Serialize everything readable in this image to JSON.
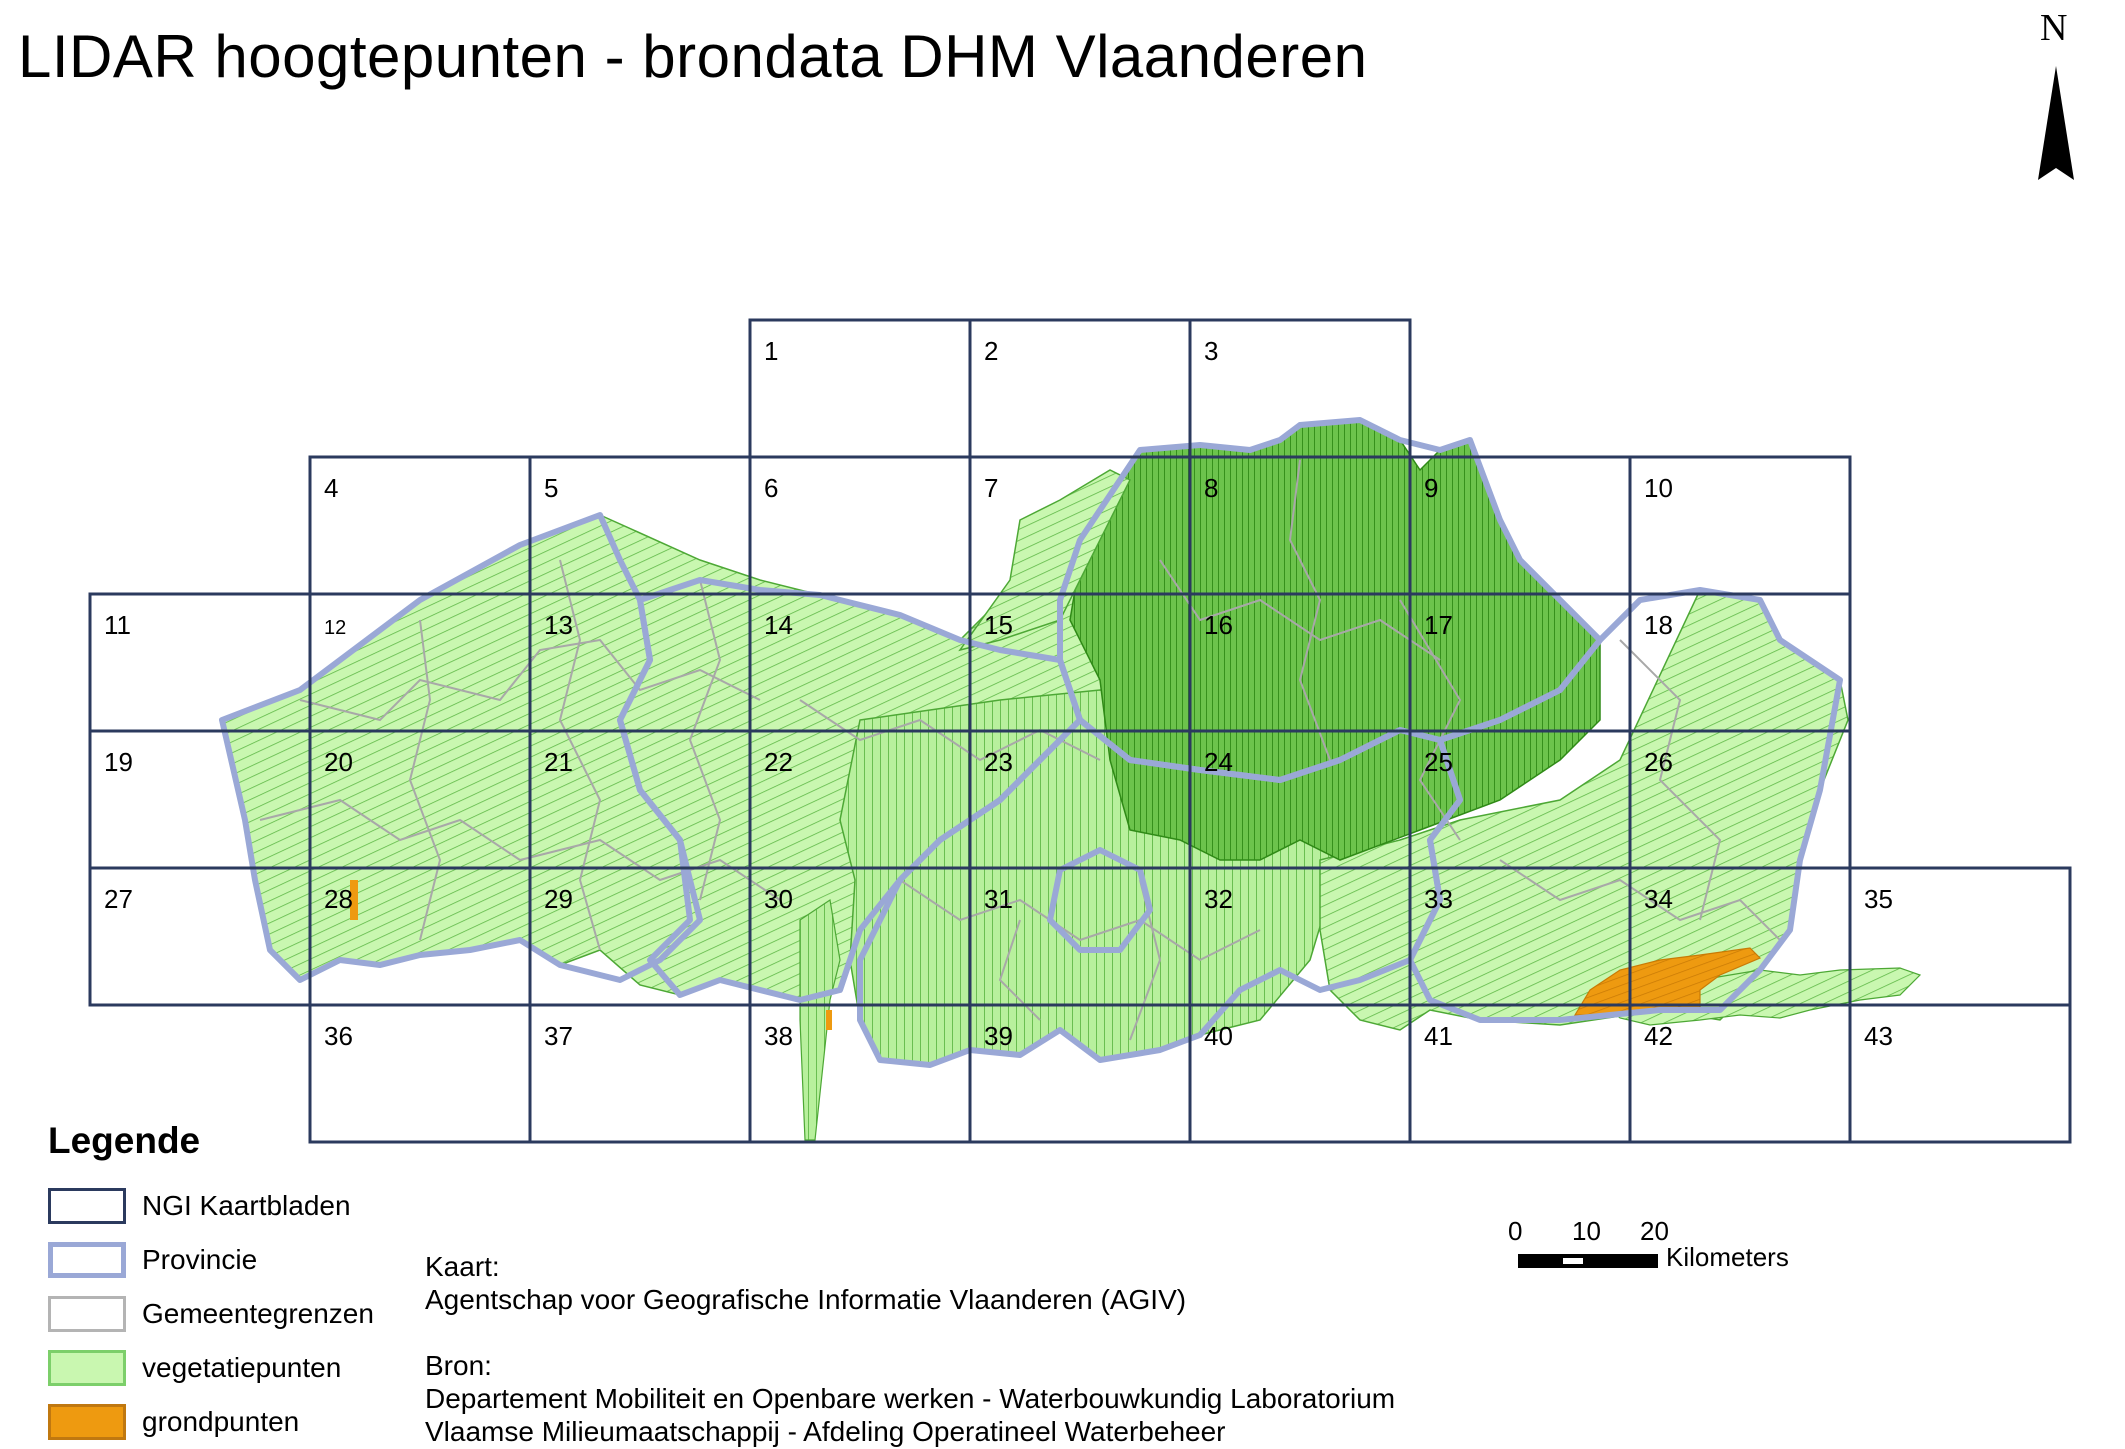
{
  "title": "LIDAR hoogtepunten - brondata DHM Vlaanderen",
  "north_arrow": {
    "label": "N",
    "icon": "north-arrow-icon"
  },
  "tiles": [
    "1",
    "2",
    "3",
    "4",
    "5",
    "6",
    "7",
    "8",
    "9",
    "10",
    "11",
    "12",
    "13",
    "14",
    "15",
    "16",
    "17",
    "18",
    "19",
    "20",
    "21",
    "22",
    "23",
    "24",
    "25",
    "26",
    "27",
    "28",
    "29",
    "30",
    "31",
    "32",
    "33",
    "34",
    "35",
    "36",
    "37",
    "38",
    "39",
    "40",
    "41",
    "42",
    "43"
  ],
  "legend": {
    "title": "Legende",
    "items": [
      {
        "label": "NGI Kaartbladen",
        "stroke": "#2b3a5e",
        "fill": "#ffffff"
      },
      {
        "label": "Provincie",
        "stroke": "#9aa8d6",
        "fill": "#ffffff"
      },
      {
        "label": "Gemeentegrenzen",
        "stroke": "#b4b4b4",
        "fill": "#ffffff"
      },
      {
        "label": "vegetatiepunten",
        "stroke": "#7ccf6a",
        "fill": "#c9f7b0"
      },
      {
        "label": "grondpunten",
        "stroke": "#c07810",
        "fill": "#ee9a10"
      }
    ]
  },
  "credits": {
    "map_label": "Kaart:",
    "map_text": "Agentschap voor Geografische Informatie Vlaanderen (AGIV)",
    "source_label": "Bron:",
    "source_lines": [
      "Departement Mobiliteit en Openbare werken - Waterbouwkundig Laboratorium",
      "Vlaamse Milieumaatschappij - Afdeling Operatineel Waterbeheer"
    ]
  },
  "scale_bar": {
    "ticks": [
      "0",
      "10",
      "20"
    ],
    "unit": "Kilometers"
  },
  "colors": {
    "grid": "#2b3a5e",
    "province": "#9aa8d6",
    "municipality": "#a8a8a8",
    "vegetation_light": "#c9f7b0",
    "vegetation_mid": "#8fd86e",
    "vegetation_dark": "#3f9b1f",
    "ground": "#ee9a10"
  }
}
